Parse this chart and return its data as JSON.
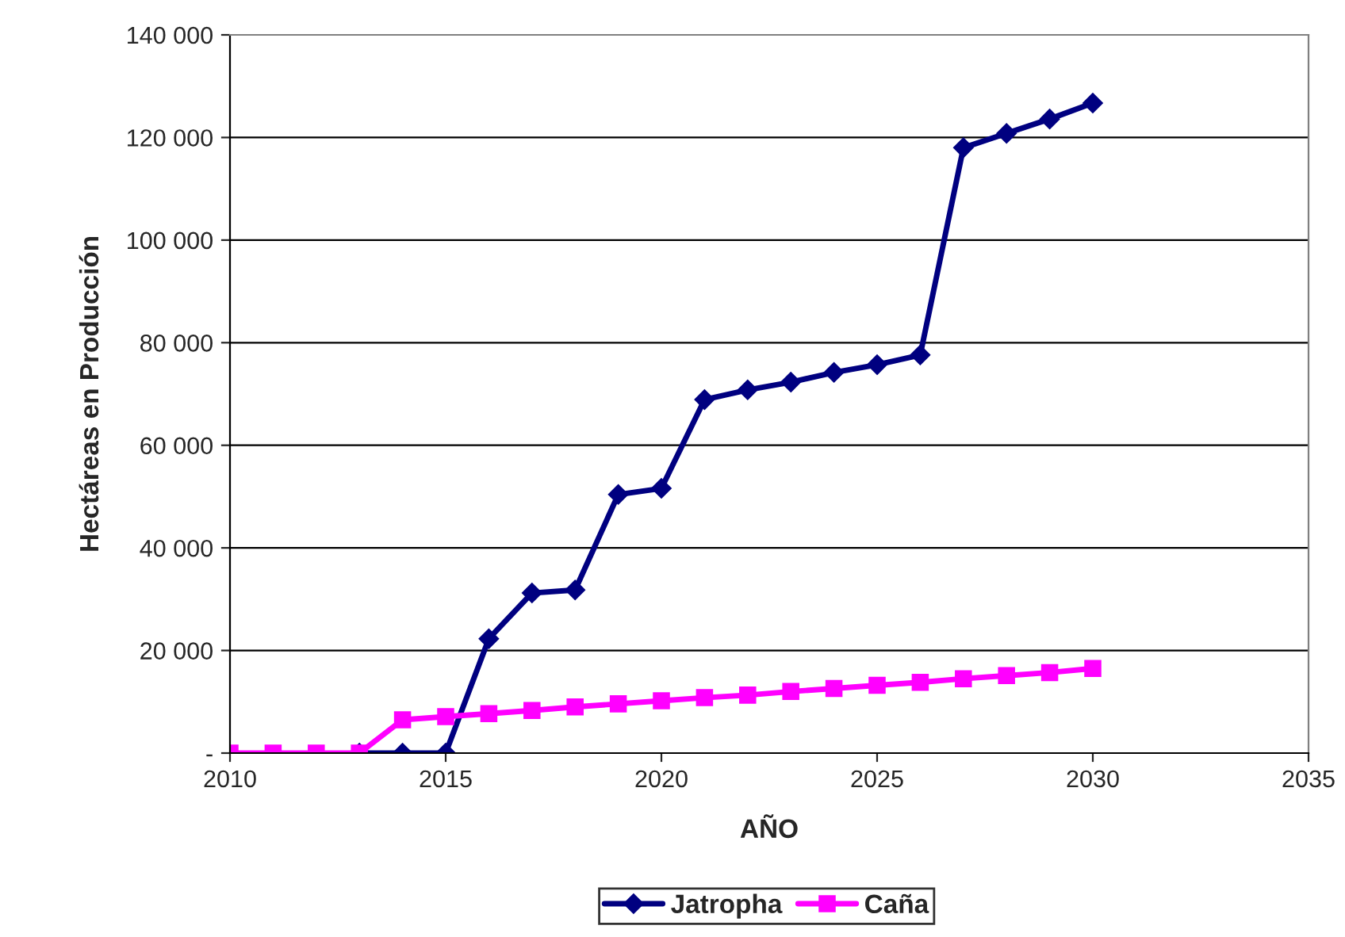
{
  "chart_data": {
    "type": "line",
    "xlabel": "AÑO",
    "ylabel": "Hectáreas en Producción",
    "x": [
      2010,
      2011,
      2012,
      2013,
      2014,
      2015,
      2016,
      2017,
      2018,
      2019,
      2020,
      2021,
      2022,
      2023,
      2024,
      2025,
      2026,
      2027,
      2028,
      2029,
      2030
    ],
    "series": [
      {
        "name": "Jatropha",
        "color": "#000080",
        "marker": "diamond",
        "values": [
          null,
          null,
          null,
          0,
          0,
          0,
          22300,
          31200,
          31800,
          50400,
          51600,
          68900,
          70800,
          72300,
          74200,
          75700,
          77600,
          118000,
          120800,
          123600,
          126700
        ]
      },
      {
        "name": "Caña",
        "color": "#ff00ff",
        "marker": "square",
        "values": [
          0,
          0,
          0,
          0,
          6500,
          7100,
          7700,
          8300,
          9000,
          9600,
          10200,
          10800,
          11300,
          12000,
          12600,
          13200,
          13800,
          14500,
          15100,
          15700,
          16500
        ]
      }
    ],
    "xlim": [
      2010,
      2035
    ],
    "xticks": [
      2010,
      2015,
      2020,
      2025,
      2030,
      2035
    ],
    "ylim": [
      0,
      140000
    ],
    "yticks": [
      {
        "value": 0,
        "label": "-"
      },
      {
        "value": 20000,
        "label": "20 000"
      },
      {
        "value": 40000,
        "label": "40 000"
      },
      {
        "value": 60000,
        "label": "60 000"
      },
      {
        "value": 80000,
        "label": "80 000"
      },
      {
        "value": 100000,
        "label": "100 000"
      },
      {
        "value": 120000,
        "label": "120 000"
      },
      {
        "value": 140000,
        "label": "140 000"
      }
    ],
    "grid": "y",
    "legend": "bottom",
    "line_style": "solid"
  }
}
